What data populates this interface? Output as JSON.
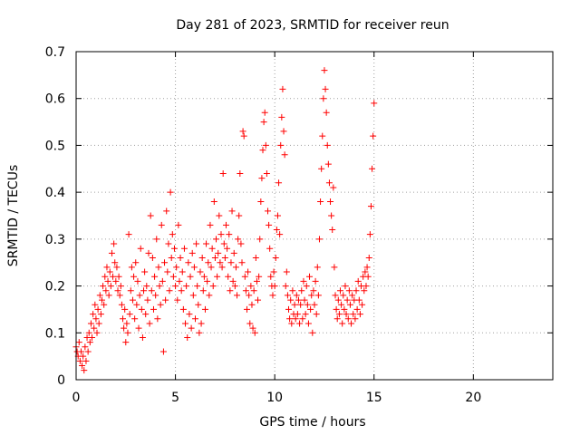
{
  "chart_data": {
    "type": "scatter",
    "title": "Day 281 of 2023, SRMTID for receiver reun",
    "xlabel": "GPS time / hours",
    "ylabel": "SRMTID / TECUs",
    "xlim": [
      0,
      24
    ],
    "ylim": [
      0,
      0.7
    ],
    "xticks": [
      0,
      5,
      10,
      15,
      20
    ],
    "yticks": [
      0,
      0.1,
      0.2,
      0.3,
      0.4,
      0.5,
      0.6,
      0.7
    ],
    "xtick_labels": [
      "0",
      "5",
      "10",
      "15",
      "20"
    ],
    "ytick_labels": [
      "0",
      "0.1",
      "0.2",
      "0.3",
      "0.4",
      "0.5",
      "0.6",
      "0.7"
    ],
    "grid": true,
    "marker": "+",
    "series": [
      {
        "name": "reun",
        "color": "#ff0000",
        "points": [
          [
            0.0,
            0.07
          ],
          [
            0.05,
            0.06
          ],
          [
            0.1,
            0.05
          ],
          [
            0.15,
            0.08
          ],
          [
            0.2,
            0.04
          ],
          [
            0.25,
            0.06
          ],
          [
            0.3,
            0.03
          ],
          [
            0.35,
            0.05
          ],
          [
            0.4,
            0.02
          ],
          [
            0.45,
            0.07
          ],
          [
            0.5,
            0.04
          ],
          [
            0.55,
            0.09
          ],
          [
            0.6,
            0.06
          ],
          [
            0.65,
            0.1
          ],
          [
            0.7,
            0.08
          ],
          [
            0.75,
            0.12
          ],
          [
            0.8,
            0.09
          ],
          [
            0.85,
            0.14
          ],
          [
            0.9,
            0.11
          ],
          [
            0.95,
            0.16
          ],
          [
            1.0,
            0.13
          ],
          [
            1.05,
            0.1
          ],
          [
            1.1,
            0.15
          ],
          [
            1.15,
            0.12
          ],
          [
            1.2,
            0.18
          ],
          [
            1.25,
            0.14
          ],
          [
            1.3,
            0.17
          ],
          [
            1.35,
            0.2
          ],
          [
            1.4,
            0.16
          ],
          [
            1.45,
            0.22
          ],
          [
            1.5,
            0.19
          ],
          [
            1.55,
            0.24
          ],
          [
            1.6,
            0.21
          ],
          [
            1.65,
            0.18
          ],
          [
            1.7,
            0.23
          ],
          [
            1.75,
            0.2
          ],
          [
            1.8,
            0.27
          ],
          [
            1.85,
            0.22
          ],
          [
            1.9,
            0.29
          ],
          [
            1.95,
            0.25
          ],
          [
            2.0,
            0.21
          ],
          [
            2.05,
            0.24
          ],
          [
            2.1,
            0.19
          ],
          [
            2.15,
            0.22
          ],
          [
            2.2,
            0.18
          ],
          [
            2.25,
            0.2
          ],
          [
            2.3,
            0.16
          ],
          [
            2.35,
            0.13
          ],
          [
            2.4,
            0.11
          ],
          [
            2.45,
            0.15
          ],
          [
            2.5,
            0.08
          ],
          [
            2.55,
            0.12
          ],
          [
            2.6,
            0.1
          ],
          [
            2.65,
            0.31
          ],
          [
            2.7,
            0.14
          ],
          [
            2.75,
            0.19
          ],
          [
            2.8,
            0.24
          ],
          [
            2.85,
            0.17
          ],
          [
            2.9,
            0.22
          ],
          [
            2.95,
            0.13
          ],
          [
            3.0,
            0.25
          ],
          [
            3.05,
            0.16
          ],
          [
            3.1,
            0.21
          ],
          [
            3.15,
            0.11
          ],
          [
            3.2,
            0.18
          ],
          [
            3.25,
            0.28
          ],
          [
            3.3,
            0.15
          ],
          [
            3.35,
            0.09
          ],
          [
            3.4,
            0.19
          ],
          [
            3.45,
            0.23
          ],
          [
            3.5,
            0.14
          ],
          [
            3.55,
            0.2
          ],
          [
            3.6,
            0.17
          ],
          [
            3.65,
            0.27
          ],
          [
            3.7,
            0.12
          ],
          [
            3.75,
            0.35
          ],
          [
            3.8,
            0.19
          ],
          [
            3.85,
            0.26
          ],
          [
            3.9,
            0.15
          ],
          [
            3.95,
            0.22
          ],
          [
            4.0,
            0.18
          ],
          [
            4.05,
            0.3
          ],
          [
            4.1,
            0.13
          ],
          [
            4.15,
            0.24
          ],
          [
            4.2,
            0.2
          ],
          [
            4.25,
            0.16
          ],
          [
            4.3,
            0.33
          ],
          [
            4.35,
            0.21
          ],
          [
            4.4,
            0.06
          ],
          [
            4.45,
            0.25
          ],
          [
            4.5,
            0.17
          ],
          [
            4.55,
            0.36
          ],
          [
            4.6,
            0.23
          ],
          [
            4.65,
            0.29
          ],
          [
            4.7,
            0.19
          ],
          [
            4.75,
            0.4
          ],
          [
            4.8,
            0.26
          ],
          [
            4.85,
            0.31
          ],
          [
            4.9,
            0.22
          ],
          [
            4.95,
            0.28
          ],
          [
            5.0,
            0.2
          ],
          [
            5.05,
            0.24
          ],
          [
            5.1,
            0.17
          ],
          [
            5.15,
            0.33
          ],
          [
            5.2,
            0.21
          ],
          [
            5.25,
            0.26
          ],
          [
            5.3,
            0.19
          ],
          [
            5.35,
            0.23
          ],
          [
            5.4,
            0.15
          ],
          [
            5.45,
            0.28
          ],
          [
            5.5,
            0.12
          ],
          [
            5.55,
            0.2
          ],
          [
            5.6,
            0.09
          ],
          [
            5.65,
            0.25
          ],
          [
            5.7,
            0.14
          ],
          [
            5.75,
            0.22
          ],
          [
            5.8,
            0.11
          ],
          [
            5.85,
            0.27
          ],
          [
            5.9,
            0.18
          ],
          [
            5.95,
            0.24
          ],
          [
            6.0,
            0.13
          ],
          [
            6.05,
            0.29
          ],
          [
            6.1,
            0.2
          ],
          [
            6.15,
            0.16
          ],
          [
            6.2,
            0.1
          ],
          [
            6.25,
            0.23
          ],
          [
            6.3,
            0.12
          ],
          [
            6.35,
            0.26
          ],
          [
            6.4,
            0.19
          ],
          [
            6.45,
            0.22
          ],
          [
            6.5,
            0.15
          ],
          [
            6.55,
            0.29
          ],
          [
            6.6,
            0.21
          ],
          [
            6.65,
            0.25
          ],
          [
            6.7,
            0.18
          ],
          [
            6.75,
            0.33
          ],
          [
            6.8,
            0.24
          ],
          [
            6.85,
            0.28
          ],
          [
            6.9,
            0.2
          ],
          [
            6.95,
            0.38
          ],
          [
            7.0,
            0.26
          ],
          [
            7.05,
            0.3
          ],
          [
            7.1,
            0.22
          ],
          [
            7.15,
            0.27
          ],
          [
            7.2,
            0.35
          ],
          [
            7.25,
            0.25
          ],
          [
            7.3,
            0.31
          ],
          [
            7.35,
            0.24
          ],
          [
            7.4,
            0.44
          ],
          [
            7.45,
            0.29
          ],
          [
            7.5,
            0.26
          ],
          [
            7.55,
            0.33
          ],
          [
            7.6,
            0.28
          ],
          [
            7.65,
            0.22
          ],
          [
            7.7,
            0.31
          ],
          [
            7.75,
            0.19
          ],
          [
            7.8,
            0.25
          ],
          [
            7.85,
            0.36
          ],
          [
            7.9,
            0.21
          ],
          [
            7.95,
            0.27
          ],
          [
            8.0,
            0.2
          ],
          [
            8.05,
            0.24
          ],
          [
            8.1,
            0.18
          ],
          [
            8.15,
            0.3
          ],
          [
            8.2,
            0.35
          ],
          [
            8.25,
            0.44
          ],
          [
            8.3,
            0.29
          ],
          [
            8.35,
            0.25
          ],
          [
            8.4,
            0.53
          ],
          [
            8.45,
            0.52
          ],
          [
            8.5,
            0.22
          ],
          [
            8.55,
            0.19
          ],
          [
            8.6,
            0.15
          ],
          [
            8.65,
            0.23
          ],
          [
            8.7,
            0.18
          ],
          [
            8.75,
            0.12
          ],
          [
            8.8,
            0.2
          ],
          [
            8.85,
            0.16
          ],
          [
            8.9,
            0.11
          ],
          [
            8.95,
            0.19
          ],
          [
            9.0,
            0.1
          ],
          [
            9.05,
            0.26
          ],
          [
            9.1,
            0.21
          ],
          [
            9.15,
            0.17
          ],
          [
            9.2,
            0.22
          ],
          [
            9.25,
            0.3
          ],
          [
            9.3,
            0.38
          ],
          [
            9.35,
            0.43
          ],
          [
            9.4,
            0.49
          ],
          [
            9.45,
            0.55
          ],
          [
            9.5,
            0.57
          ],
          [
            9.55,
            0.5
          ],
          [
            9.6,
            0.44
          ],
          [
            9.65,
            0.36
          ],
          [
            9.7,
            0.33
          ],
          [
            9.75,
            0.28
          ],
          [
            9.8,
            0.22
          ],
          [
            9.85,
            0.2
          ],
          [
            9.9,
            0.18
          ],
          [
            9.95,
            0.23
          ],
          [
            10.0,
            0.2
          ],
          [
            10.05,
            0.26
          ],
          [
            10.1,
            0.32
          ],
          [
            10.15,
            0.35
          ],
          [
            10.2,
            0.42
          ],
          [
            10.25,
            0.31
          ],
          [
            10.3,
            0.5
          ],
          [
            10.35,
            0.56
          ],
          [
            10.4,
            0.62
          ],
          [
            10.45,
            0.53
          ],
          [
            10.5,
            0.48
          ],
          [
            10.55,
            0.2
          ],
          [
            10.6,
            0.23
          ],
          [
            10.65,
            0.18
          ],
          [
            10.7,
            0.15
          ],
          [
            10.75,
            0.13
          ],
          [
            10.8,
            0.17
          ],
          [
            10.85,
            0.12
          ],
          [
            10.9,
            0.19
          ],
          [
            10.95,
            0.14
          ],
          [
            11.0,
            0.16
          ],
          [
            11.05,
            0.13
          ],
          [
            11.1,
            0.18
          ],
          [
            11.15,
            0.14
          ],
          [
            11.2,
            0.17
          ],
          [
            11.25,
            0.12
          ],
          [
            11.3,
            0.16
          ],
          [
            11.35,
            0.19
          ],
          [
            11.4,
            0.13
          ],
          [
            11.45,
            0.21
          ],
          [
            11.5,
            0.17
          ],
          [
            11.55,
            0.14
          ],
          [
            11.6,
            0.2
          ],
          [
            11.65,
            0.16
          ],
          [
            11.7,
            0.12
          ],
          [
            11.75,
            0.22
          ],
          [
            11.8,
            0.15
          ],
          [
            11.85,
            0.18
          ],
          [
            11.9,
            0.1
          ],
          [
            11.95,
            0.19
          ],
          [
            12.0,
            0.16
          ],
          [
            12.05,
            0.21
          ],
          [
            12.1,
            0.14
          ],
          [
            12.15,
            0.24
          ],
          [
            12.2,
            0.18
          ],
          [
            12.25,
            0.3
          ],
          [
            12.3,
            0.38
          ],
          [
            12.35,
            0.45
          ],
          [
            12.4,
            0.52
          ],
          [
            12.45,
            0.6
          ],
          [
            12.5,
            0.66
          ],
          [
            12.55,
            0.62
          ],
          [
            12.6,
            0.57
          ],
          [
            12.65,
            0.5
          ],
          [
            12.7,
            0.46
          ],
          [
            12.75,
            0.42
          ],
          [
            12.8,
            0.38
          ],
          [
            12.85,
            0.35
          ],
          [
            12.9,
            0.32
          ],
          [
            12.95,
            0.41
          ],
          [
            13.0,
            0.24
          ],
          [
            13.05,
            0.18
          ],
          [
            13.1,
            0.15
          ],
          [
            13.15,
            0.13
          ],
          [
            13.2,
            0.17
          ],
          [
            13.25,
            0.14
          ],
          [
            13.3,
            0.19
          ],
          [
            13.35,
            0.16
          ],
          [
            13.4,
            0.12
          ],
          [
            13.45,
            0.18
          ],
          [
            13.5,
            0.15
          ],
          [
            13.55,
            0.2
          ],
          [
            13.6,
            0.14
          ],
          [
            13.65,
            0.17
          ],
          [
            13.7,
            0.13
          ],
          [
            13.75,
            0.19
          ],
          [
            13.8,
            0.16
          ],
          [
            13.85,
            0.12
          ],
          [
            13.9,
            0.18
          ],
          [
            13.95,
            0.14
          ],
          [
            14.0,
            0.17
          ],
          [
            14.05,
            0.13
          ],
          [
            14.1,
            0.19
          ],
          [
            14.15,
            0.15
          ],
          [
            14.2,
            0.21
          ],
          [
            14.25,
            0.17
          ],
          [
            14.3,
            0.14
          ],
          [
            14.35,
            0.2
          ],
          [
            14.4,
            0.16
          ],
          [
            14.45,
            0.22
          ],
          [
            14.5,
            0.19
          ],
          [
            14.55,
            0.23
          ],
          [
            14.6,
            0.2
          ],
          [
            14.65,
            0.24
          ],
          [
            14.7,
            0.22
          ],
          [
            14.75,
            0.26
          ],
          [
            14.8,
            0.31
          ],
          [
            14.85,
            0.37
          ],
          [
            14.9,
            0.45
          ],
          [
            14.95,
            0.52
          ],
          [
            15.0,
            0.59
          ]
        ]
      }
    ]
  }
}
